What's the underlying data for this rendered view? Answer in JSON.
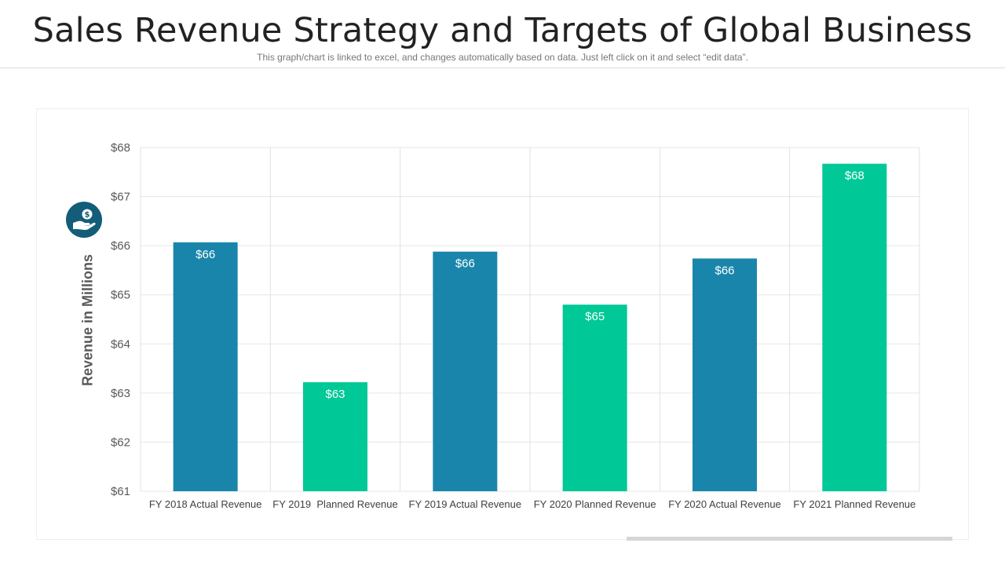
{
  "header": {
    "title": "Sales Revenue Strategy and Targets of Global Business",
    "subtitle": "This graph/chart is linked to excel, and changes automatically based on data. Just left click on it and select “edit data”."
  },
  "icons": {
    "badge": "dollar-hand-icon"
  },
  "colors": {
    "actual": "#1a85ab",
    "planned": "#00c896",
    "badge": "#135d79"
  },
  "chart_data": {
    "type": "bar",
    "categories": [
      "FY 2018 Actual Revenue",
      "FY 2019  Planned Revenue",
      "FY 2019 Actual Revenue",
      "FY 2020 Planned Revenue",
      "FY 2020 Actual Revenue",
      "FY 2021 Planned Revenue"
    ],
    "values": [
      66.07,
      63.22,
      65.88,
      64.8,
      65.74,
      67.67
    ],
    "data_labels": [
      "$66",
      "$63",
      "$66",
      "$65",
      "$66",
      "$68"
    ],
    "bar_kinds": [
      "actual",
      "planned",
      "actual",
      "planned",
      "actual",
      "planned"
    ],
    "ylabel": "Revenue in Millions",
    "ylim": [
      61,
      68
    ],
    "yticks": [
      61,
      62,
      63,
      64,
      65,
      66,
      67,
      68
    ],
    "ytick_labels": [
      "$61",
      "$62",
      "$63",
      "$64",
      "$65",
      "$66",
      "$67",
      "$68"
    ],
    "grid": true,
    "legend": "none"
  }
}
